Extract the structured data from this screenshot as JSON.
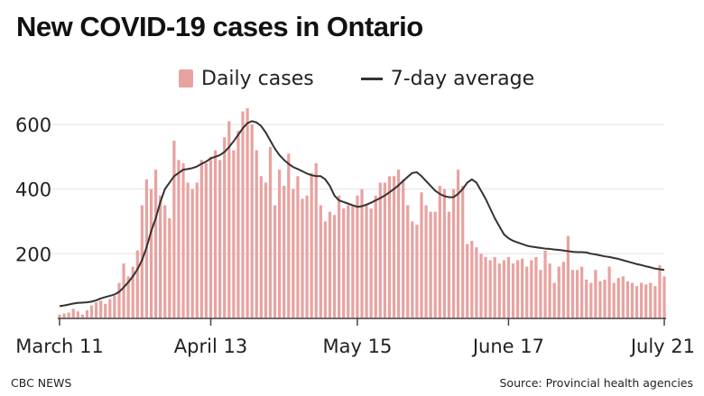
{
  "title": "New COVID-19 cases in Ontario",
  "legend": {
    "bars": "Daily cases",
    "line": "7-day average"
  },
  "footer": {
    "credit": "CBC NEWS",
    "source": "Source: Provincial health agencies"
  },
  "colors": {
    "bar": "#e8a3a0",
    "line": "#333333",
    "grid": "#e3e3e3",
    "axis": "#444444"
  },
  "chart_data": {
    "type": "bar",
    "title": "New COVID-19 cases in Ontario",
    "x_ticks": [
      {
        "label": "March 11",
        "day": 0
      },
      {
        "label": "April 13",
        "day": 33
      },
      {
        "label": "May 15",
        "day": 65
      },
      {
        "label": "June 17",
        "day": 98
      },
      {
        "label": "July 21",
        "day": 132
      }
    ],
    "y_ticks": [
      200,
      400,
      600
    ],
    "ylim": [
      0,
      650
    ],
    "grid": true,
    "series": [
      {
        "name": "Daily cases",
        "type": "bar",
        "values": [
          12,
          15,
          18,
          30,
          22,
          12,
          25,
          40,
          50,
          55,
          45,
          60,
          70,
          110,
          170,
          130,
          160,
          210,
          350,
          430,
          400,
          460,
          380,
          350,
          310,
          550,
          490,
          480,
          420,
          400,
          420,
          490,
          480,
          500,
          520,
          490,
          560,
          610,
          520,
          580,
          640,
          650,
          600,
          520,
          440,
          420,
          530,
          350,
          460,
          410,
          510,
          400,
          440,
          370,
          380,
          450,
          480,
          350,
          300,
          330,
          320,
          380,
          340,
          350,
          350,
          380,
          400,
          350,
          340,
          380,
          420,
          420,
          440,
          440,
          460,
          430,
          350,
          300,
          290,
          390,
          350,
          330,
          330,
          410,
          400,
          330,
          400,
          460,
          410,
          230,
          240,
          220,
          200,
          190,
          180,
          190,
          170,
          180,
          190,
          170,
          180,
          185,
          160,
          180,
          190,
          150,
          210,
          170,
          110,
          160,
          175,
          255,
          150,
          150,
          160,
          120,
          110,
          150,
          115,
          120,
          160,
          110,
          125,
          130,
          115,
          110,
          100,
          110,
          105,
          110,
          100,
          165,
          130
        ]
      },
      {
        "name": "7-day average",
        "type": "line",
        "values": [
          38,
          40,
          43,
          46,
          48,
          49,
          50,
          52,
          56,
          62,
          66,
          70,
          74,
          82,
          96,
          112,
          130,
          152,
          180,
          220,
          270,
          310,
          360,
          400,
          420,
          440,
          450,
          460,
          462,
          465,
          470,
          478,
          485,
          495,
          500,
          505,
          515,
          530,
          548,
          568,
          588,
          604,
          610,
          606,
          595,
          575,
          550,
          525,
          505,
          490,
          478,
          468,
          462,
          455,
          448,
          443,
          440,
          440,
          430,
          410,
          380,
          365,
          360,
          355,
          350,
          345,
          347,
          352,
          358,
          365,
          372,
          380,
          390,
          400,
          412,
          425,
          438,
          450,
          452,
          440,
          425,
          410,
          395,
          385,
          378,
          375,
          375,
          385,
          400,
          420,
          430,
          420,
          395,
          370,
          340,
          310,
          285,
          260,
          248,
          240,
          235,
          230,
          225,
          222,
          220,
          218,
          216,
          215,
          213,
          212,
          210,
          208,
          206,
          205,
          205,
          204,
          200,
          198,
          195,
          192,
          190,
          187,
          184,
          180,
          176,
          172,
          168,
          165,
          161,
          158,
          154,
          152,
          150
        ]
      }
    ]
  }
}
